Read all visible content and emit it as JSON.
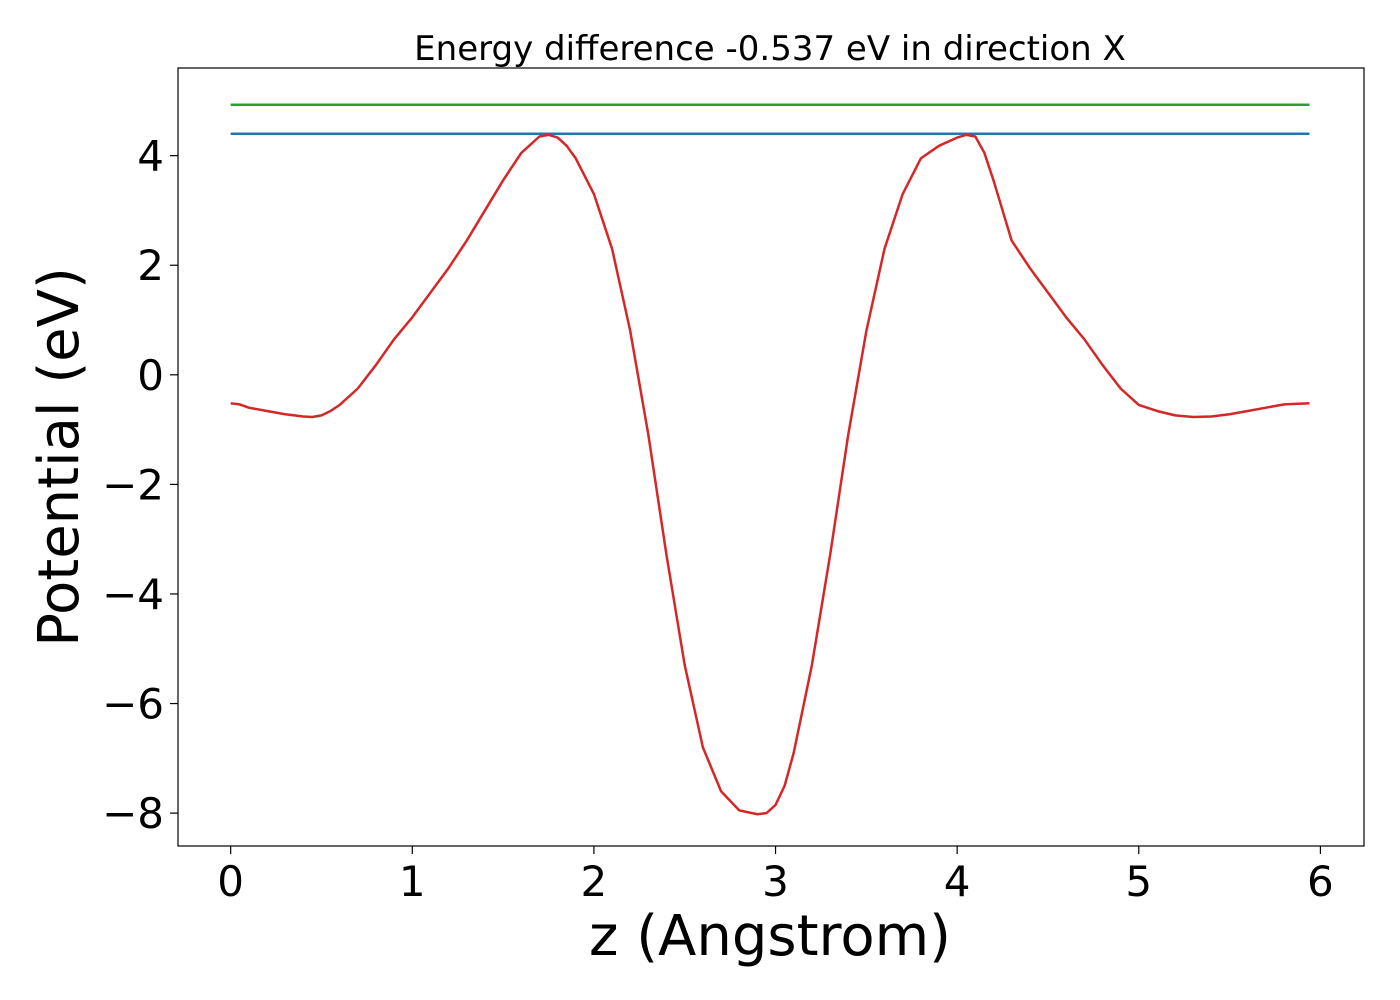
{
  "chart_data": {
    "type": "line",
    "title": "Energy difference -0.537 eV in direction X",
    "xlabel": "z (Angstrom)",
    "ylabel": "Potential (eV)",
    "xlim": [
      -0.29,
      6.24
    ],
    "ylim": [
      -8.6,
      5.6
    ],
    "xticks": [
      0,
      1,
      2,
      3,
      4,
      5,
      6
    ],
    "yticks": [
      4,
      2,
      0,
      -2,
      -4,
      -6,
      -8
    ],
    "xtick_labels": [
      "0",
      "1",
      "2",
      "3",
      "4",
      "5",
      "6"
    ],
    "ytick_labels": [
      "4",
      "2",
      "0",
      "−2",
      "−4",
      "−6",
      "−8"
    ],
    "grid": false,
    "series": [
      {
        "color": "#2ca02c",
        "x": [
          0,
          5.94
        ],
        "y": [
          4.93,
          4.93
        ]
      },
      {
        "color": "#1f77b4",
        "x": [
          0,
          5.94
        ],
        "y": [
          4.4,
          4.4
        ]
      },
      {
        "color": "#d62728",
        "x": [
          0,
          0.05,
          0.1,
          0.2,
          0.3,
          0.4,
          0.45,
          0.5,
          0.55,
          0.6,
          0.7,
          0.8,
          0.9,
          1.0,
          1.1,
          1.2,
          1.3,
          1.4,
          1.5,
          1.6,
          1.7,
          1.75,
          1.8,
          1.85,
          1.9,
          2.0,
          2.1,
          2.2,
          2.3,
          2.4,
          2.5,
          2.6,
          2.7,
          2.8,
          2.9,
          2.95,
          3.0,
          3.05,
          3.1,
          3.2,
          3.3,
          3.4,
          3.5,
          3.6,
          3.7,
          3.8,
          3.9,
          4.0,
          4.05,
          4.1,
          4.15,
          4.2,
          4.25,
          4.3,
          4.4,
          4.5,
          4.6,
          4.7,
          4.8,
          4.9,
          5.0,
          5.1,
          5.2,
          5.3,
          5.4,
          5.5,
          5.6,
          5.7,
          5.8,
          5.94
        ],
        "y": [
          -0.52,
          -0.54,
          -0.6,
          -0.66,
          -0.72,
          -0.76,
          -0.77,
          -0.74,
          -0.66,
          -0.55,
          -0.25,
          0.18,
          0.65,
          1.05,
          1.5,
          1.95,
          2.45,
          3.0,
          3.55,
          4.05,
          4.35,
          4.38,
          4.33,
          4.18,
          3.95,
          3.3,
          2.3,
          0.8,
          -1.1,
          -3.3,
          -5.3,
          -6.8,
          -7.6,
          -7.95,
          -8.02,
          -8.0,
          -7.85,
          -7.5,
          -6.9,
          -5.3,
          -3.3,
          -1.1,
          0.8,
          2.3,
          3.3,
          3.95,
          4.18,
          4.33,
          4.38,
          4.35,
          4.05,
          3.55,
          3.0,
          2.45,
          1.95,
          1.5,
          1.05,
          0.65,
          0.18,
          -0.25,
          -0.55,
          -0.66,
          -0.74,
          -0.77,
          -0.76,
          -0.72,
          -0.66,
          -0.6,
          -0.54,
          -0.52
        ]
      }
    ]
  }
}
